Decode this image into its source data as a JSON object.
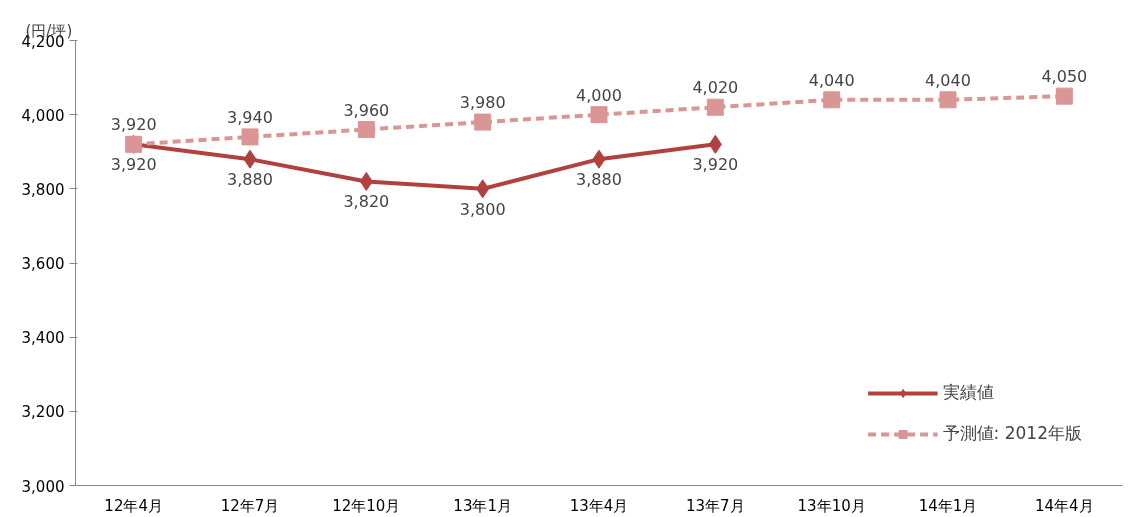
{
  "chart_data": {
    "type": "line",
    "ylabel": "(円/坪)",
    "categories": [
      "12年4月",
      "12年7月",
      "12年10月",
      "13年1月",
      "13年4月",
      "13年7月",
      "13年10月",
      "14年1月",
      "14年4月"
    ],
    "series": [
      {
        "name": "実績値",
        "color": "#b0413e",
        "marker": "diamond",
        "line_style": "solid",
        "values": [
          3920,
          3880,
          3820,
          3800,
          3880,
          3920,
          null,
          null,
          null
        ],
        "value_labels": [
          "3,920",
          "3,880",
          "3,820",
          "3,800",
          "3,880",
          "3,920",
          null,
          null,
          null
        ]
      },
      {
        "name": "予測値: 2012年版",
        "color": "#d99694",
        "marker": "square",
        "line_style": "dashed",
        "values": [
          3920,
          3940,
          3960,
          3980,
          4000,
          4020,
          4040,
          4040,
          4050
        ],
        "value_labels": [
          "3,920",
          "3,940",
          "3,960",
          "3,980",
          "4,000",
          "4,020",
          "4,040",
          "4,040",
          "4,050"
        ]
      }
    ],
    "ylim": [
      3000,
      4200
    ],
    "yticks": [
      {
        "value": 3000,
        "label": "3,000"
      },
      {
        "value": 3200,
        "label": "3,200"
      },
      {
        "value": 3400,
        "label": "3,400"
      },
      {
        "value": 3600,
        "label": "3,600"
      },
      {
        "value": 3800,
        "label": "3,800"
      },
      {
        "value": 4000,
        "label": "4,000"
      },
      {
        "value": 4200,
        "label": "4,200"
      }
    ],
    "grid": false,
    "legend": "bottom right"
  }
}
